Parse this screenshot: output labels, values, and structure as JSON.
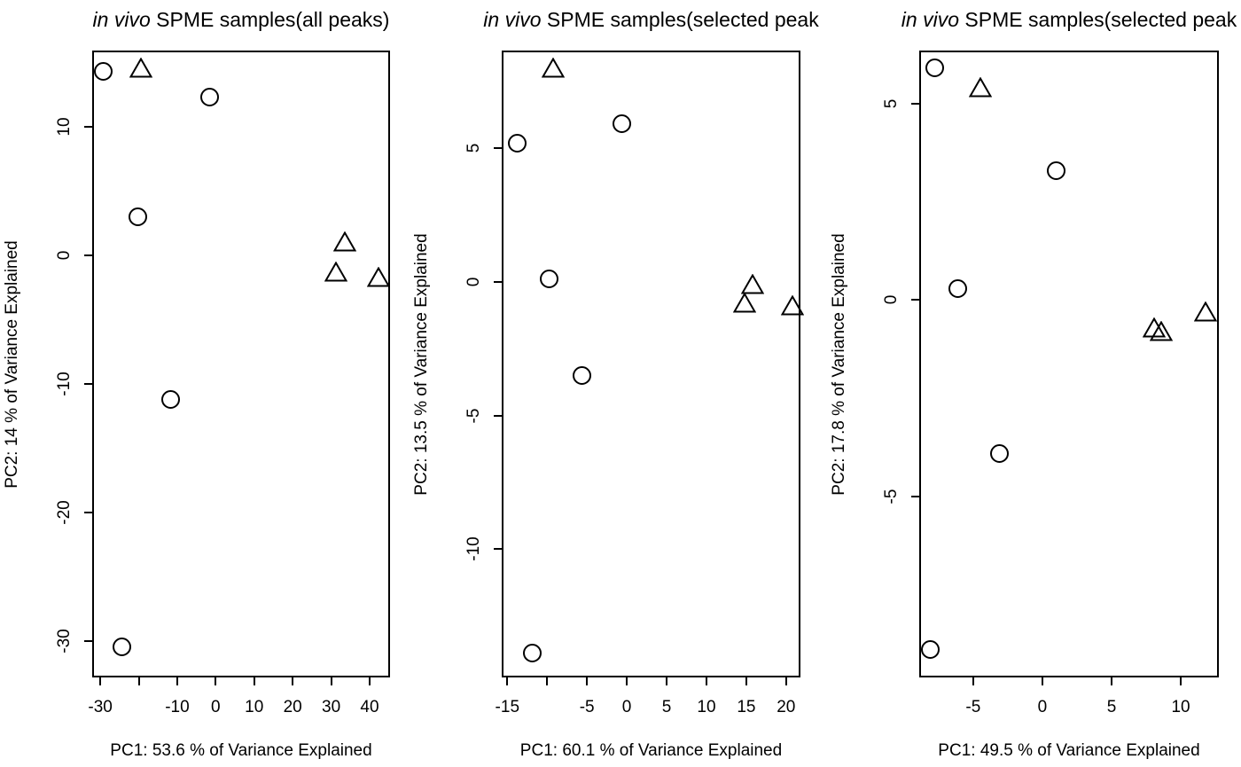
{
  "figure": {
    "background_color": "#ffffff",
    "stroke_color": "#000000",
    "marker_legend_note": "open circles = sample group 1, open triangles = sample group 2 (no legend shown in figure)"
  },
  "chart_data": [
    {
      "type": "scatter",
      "title": {
        "italic": "in vivo",
        "rest": " SPME samples(all peaks)"
      },
      "xlabel": "PC1: 53.6 % of Variance Explained",
      "ylabel": "PC2: 14 % of Variance Explained",
      "xlim": [
        -32.1,
        45.3
      ],
      "ylim": [
        -32.8,
        15.9
      ],
      "grid": false,
      "legend": false,
      "xticks": [
        {
          "v": -30,
          "label": "-30"
        },
        {
          "v": -20,
          "label": ""
        },
        {
          "v": -10,
          "label": "-10"
        },
        {
          "v": 0,
          "label": "0"
        },
        {
          "v": 10,
          "label": "10"
        },
        {
          "v": 20,
          "label": "20"
        },
        {
          "v": 30,
          "label": "30"
        },
        {
          "v": 40,
          "label": "40"
        }
      ],
      "yticks": [
        {
          "v": 10,
          "label": "10"
        },
        {
          "v": 0,
          "label": "0"
        },
        {
          "v": -10,
          "label": "-10"
        },
        {
          "v": -20,
          "label": "-20"
        },
        {
          "v": -30,
          "label": "-30"
        }
      ],
      "series": [
        {
          "name": "circle-samples",
          "marker": "circle",
          "points": [
            [
              -29.2,
              14.3
            ],
            [
              -1.5,
              12.3
            ],
            [
              -20.3,
              3.0
            ],
            [
              -11.8,
              -11.2
            ],
            [
              -24.3,
              -30.4
            ]
          ]
        },
        {
          "name": "triangle-samples",
          "marker": "triangle",
          "points": [
            [
              -19.4,
              14.5
            ],
            [
              33.6,
              1.0
            ],
            [
              31.3,
              -1.3
            ],
            [
              42.3,
              -1.7
            ]
          ]
        }
      ]
    },
    {
      "type": "scatter",
      "title": {
        "italic": "in vivo",
        "rest": " SPME samples(selected peak"
      },
      "xlabel": "PC1: 60.1 % of Variance Explained",
      "ylabel": "PC2: 13.5 % of Variance Explained",
      "xlim": [
        -15.7,
        21.8
      ],
      "ylim": [
        -14.8,
        8.65
      ],
      "grid": false,
      "legend": false,
      "xticks": [
        {
          "v": -15,
          "label": "-15"
        },
        {
          "v": -10,
          "label": ""
        },
        {
          "v": -5,
          "label": "-5"
        },
        {
          "v": 0,
          "label": "0"
        },
        {
          "v": 5,
          "label": "5"
        },
        {
          "v": 10,
          "label": "10"
        },
        {
          "v": 15,
          "label": "15"
        },
        {
          "v": 20,
          "label": "20"
        }
      ],
      "yticks": [
        {
          "v": 5,
          "label": "5"
        },
        {
          "v": 0,
          "label": "0"
        },
        {
          "v": -5,
          "label": "-5"
        },
        {
          "v": -10,
          "label": "-10"
        }
      ],
      "series": [
        {
          "name": "circle-samples",
          "marker": "circle",
          "points": [
            [
              -13.8,
              5.2
            ],
            [
              -0.6,
              5.9
            ],
            [
              -9.8,
              0.1
            ],
            [
              -5.6,
              -3.5
            ],
            [
              -11.9,
              -13.9
            ]
          ]
        },
        {
          "name": "triangle-samples",
          "marker": "triangle",
          "points": [
            [
              -9.2,
              8.0
            ],
            [
              15.8,
              -0.1
            ],
            [
              14.8,
              -0.8
            ],
            [
              20.8,
              -0.9
            ]
          ]
        }
      ]
    },
    {
      "type": "scatter",
      "title": {
        "italic": "in vivo",
        "rest": " SPME samples(selected peak"
      },
      "xlabel": "PC1: 49.5 % of Variance Explained",
      "ylabel": "PC2: 17.8 % of Variance Explained",
      "xlim": [
        -8.9,
        12.75
      ],
      "ylim": [
        -9.6,
        6.35
      ],
      "grid": false,
      "legend": false,
      "xticks": [
        {
          "v": -5,
          "label": "-5"
        },
        {
          "v": 0,
          "label": "0"
        },
        {
          "v": 5,
          "label": "5"
        },
        {
          "v": 10,
          "label": "10"
        }
      ],
      "yticks": [
        {
          "v": 5,
          "label": "5"
        },
        {
          "v": 0,
          "label": "0"
        },
        {
          "v": -5,
          "label": "-5"
        }
      ],
      "series": [
        {
          "name": "circle-samples",
          "marker": "circle",
          "points": [
            [
              -7.8,
              5.9
            ],
            [
              1.0,
              3.3
            ],
            [
              -6.1,
              0.3
            ],
            [
              -3.1,
              -3.9
            ],
            [
              -8.1,
              -8.9
            ]
          ]
        },
        {
          "name": "triangle-samples",
          "marker": "triangle",
          "points": [
            [
              -4.5,
              5.4
            ],
            [
              8.1,
              -0.72
            ],
            [
              8.6,
              -0.8
            ],
            [
              11.8,
              -0.3
            ]
          ]
        }
      ]
    }
  ]
}
